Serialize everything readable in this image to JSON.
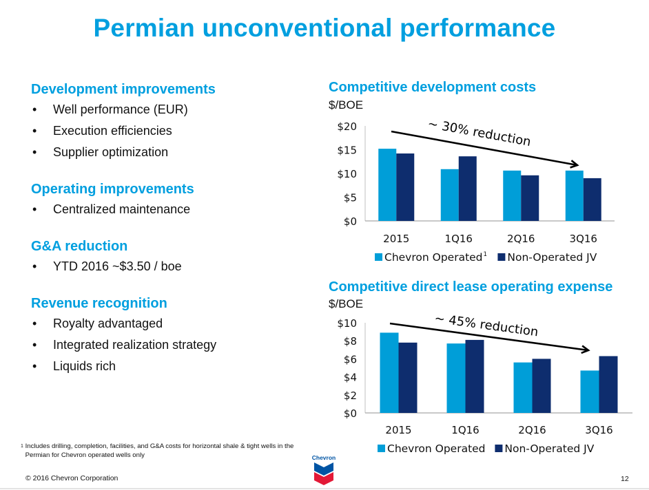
{
  "page_title": "Permian unconventional performance",
  "left_sections": [
    {
      "heading": "Development improvements",
      "bullets": [
        "Well performance (EUR)",
        "Execution efficiencies",
        "Supplier optimization"
      ]
    },
    {
      "heading": "Operating improvements",
      "bullets": [
        "Centralized maintenance"
      ]
    },
    {
      "heading": "G&A reduction",
      "bullets": [
        "YTD 2016 ~$3.50 / boe"
      ]
    },
    {
      "heading": "Revenue recognition",
      "bullets": [
        "Royalty advantaged",
        "Integrated realization strategy",
        "Liquids rich"
      ]
    }
  ],
  "bullet_glyph": "•",
  "colors": {
    "accent": "#009fdf",
    "chevron_operated": "#009ed8",
    "non_operated_jv": "#0e2d6e",
    "text": "#111111"
  },
  "chart_data": [
    {
      "type": "bar",
      "title": "Competitive development costs",
      "ylabel": "$/BOE",
      "xlabel": "",
      "categories": [
        "2015",
        "1Q16",
        "2Q16",
        "3Q16"
      ],
      "series": [
        {
          "name": "Chevron Operated",
          "superscript": "1",
          "values": [
            15.2,
            10.9,
            10.6,
            10.6
          ]
        },
        {
          "name": "Non-Operated JV",
          "values": [
            14.2,
            13.6,
            9.6,
            9.0
          ]
        }
      ],
      "ylim": [
        0,
        20
      ],
      "yticks": [
        0,
        5,
        10,
        15,
        20
      ],
      "ytick_labels": [
        "$0",
        "$5",
        "$10",
        "$15",
        "$20"
      ],
      "annotation": "~ 30% reduction",
      "legend_position": "bottom",
      "grid": false
    },
    {
      "type": "bar",
      "title": "Competitive direct lease operating expense",
      "ylabel": "$/BOE",
      "xlabel": "",
      "categories": [
        "2015",
        "1Q16",
        "2Q16",
        "3Q16"
      ],
      "series": [
        {
          "name": "Chevron Operated",
          "values": [
            8.9,
            7.7,
            5.6,
            4.7
          ]
        },
        {
          "name": "Non-Operated JV",
          "values": [
            7.8,
            8.1,
            6.0,
            6.3
          ]
        }
      ],
      "ylim": [
        0,
        10
      ],
      "yticks": [
        0,
        2,
        4,
        6,
        8,
        10
      ],
      "ytick_labels": [
        "$0",
        "$2",
        "$4",
        "$6",
        "$8",
        "$10"
      ],
      "annotation": "~ 45% reduction",
      "legend_position": "bottom",
      "grid": false
    }
  ],
  "footnote_marker": "1",
  "footnote": "Includes drilling, completion, facilities, and G&A costs for horizontal  shale & tight wells in the Permian for Chevron operated wells  only",
  "copyright": "© 2016 Chevron Corporation",
  "page_number": "12",
  "logo_text": "Chevron"
}
